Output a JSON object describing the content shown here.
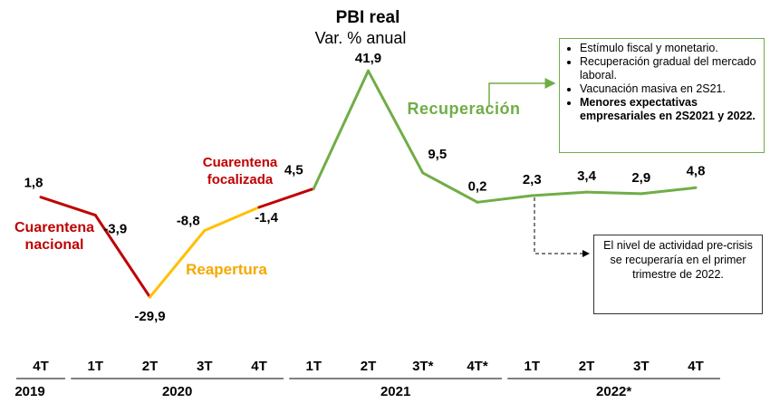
{
  "chart_data": {
    "type": "line",
    "title": "PBI real",
    "subtitle": "Var. % anual",
    "categories": [
      "4T",
      "1T",
      "2T",
      "3T",
      "4T",
      "1T",
      "2T",
      "3T*",
      "4T*",
      "1T",
      "2T",
      "3T",
      "4T"
    ],
    "years": [
      "2019",
      "2020",
      "2021",
      "2022*"
    ],
    "series": [
      {
        "name": "PBI real",
        "values": [
          1.8,
          -3.9,
          -29.9,
          -8.8,
          -1.4,
          4.5,
          41.9,
          9.5,
          0.2,
          2.3,
          3.4,
          2.9,
          4.8
        ],
        "value_labels": [
          "1,8",
          "-3,9",
          "-29,9",
          "-8,8",
          "-1,4",
          "4,5",
          "41,9",
          "9,5",
          "0,2",
          "2,3",
          "3,4",
          "2,9",
          "4,8"
        ],
        "segment_colors": [
          "#c00000",
          "#c00000",
          "#ffc000",
          "#ffc000",
          "#c00000",
          "#70ad47",
          "#70ad47",
          "#70ad47",
          "#70ad47",
          "#70ad47",
          "#70ad47",
          "#70ad47"
        ]
      }
    ],
    "annotations": [
      {
        "text": "Cuarentena nacional",
        "color": "#c00000"
      },
      {
        "text": "Reapertura",
        "color": "#f4a900"
      },
      {
        "text": "Cuarentena focalizada",
        "color": "#c00000"
      },
      {
        "text": "Recuperación",
        "color": "#70ad47"
      }
    ],
    "recovery_box": {
      "bullets": [
        {
          "text": "Estímulo fiscal y monetario.",
          "bold": false
        },
        {
          "text": "Recuperación gradual del mercado laboral.",
          "bold": false
        },
        {
          "text": "Vacunación masiva en 2S21.",
          "bold": false
        },
        {
          "text": "Menores expectativas empresariales en 2S2021 y 2022.",
          "bold": true
        }
      ]
    },
    "note": "El nivel de actividad pre-crisis se recuperaría en el primer trimestre de 2022."
  }
}
